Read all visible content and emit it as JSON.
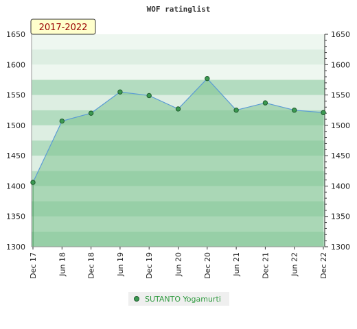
{
  "chart_data": {
    "type": "area",
    "title": "WOF ratinglist",
    "period_label": "2017-2022",
    "x": [
      "Dec 17",
      "Jun 18",
      "Dec 18",
      "Jun 19",
      "Dec 19",
      "Jun 20",
      "Dec 20",
      "Jun 21",
      "Dec 21",
      "Jun 22",
      "Dec 22"
    ],
    "ylim": [
      1300,
      1650
    ],
    "yticks": [
      1300,
      1350,
      1400,
      1450,
      1500,
      1550,
      1600,
      1650
    ],
    "series": [
      {
        "name": "SUTANTO Yogamurti",
        "values": [
          1406,
          1507,
          1520,
          1555,
          1549,
          1527,
          1577,
          1525,
          1537,
          1525,
          1521
        ]
      }
    ],
    "grid": true,
    "legend_position": "bottom-center",
    "colors": {
      "area": "#7fc591",
      "line": "#5b9bd5",
      "marker": "#3c9a52",
      "band_dark": "#b3dcc0",
      "band_light": "#ddeee2",
      "band_lightest": "#eef7f0",
      "title_box": "#ffffcc",
      "period_text": "#990000",
      "legend_text": "#2f9a3f"
    }
  }
}
